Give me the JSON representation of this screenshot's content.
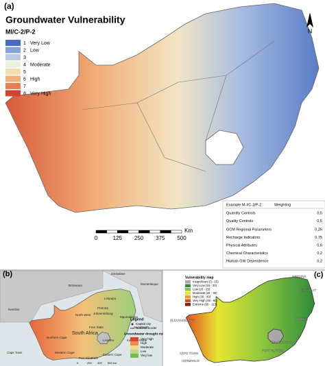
{
  "panel_a": {
    "label": "(a)",
    "title": "Groundwater Vulnerability",
    "subtitle": "MI/C-2/P-2",
    "north": "N",
    "legend": [
      {
        "number": "1",
        "label": "Very Low",
        "color": "#4a6cc0"
      },
      {
        "number": "2",
        "label": "Low",
        "color": "#86a2d8"
      },
      {
        "number": "3",
        "color": "#bccbe2"
      },
      {
        "number": "4",
        "label": "Moderate",
        "color": "#ecefdc"
      },
      {
        "number": "5",
        "color": "#f6dfae"
      },
      {
        "number": "6",
        "label": "High",
        "color": "#f2b07a"
      },
      {
        "number": "7",
        "color": "#e8814f"
      },
      {
        "number": "8",
        "label": "Very High",
        "color": "#d04634"
      }
    ],
    "scale": {
      "unit": "Km",
      "ticks": [
        "0",
        "125",
        "250",
        "375",
        "500"
      ]
    },
    "table": {
      "header": [
        "Example M-I/C-2/P-2",
        "Weighting"
      ],
      "rows": [
        [
          "Quantity Controls",
          "0,5"
        ],
        [
          "Quality Controls",
          "0,5"
        ],
        [
          "GCM Regional Parameters",
          "0,25"
        ],
        [
          "Recharge Indicators",
          "0,75"
        ],
        [
          "Physical Attributes",
          "0,6"
        ],
        [
          "Chemical Characteristics",
          "0,2"
        ],
        [
          "Human GW Dependence",
          "0,2"
        ]
      ]
    }
  },
  "panel_b": {
    "label": "(b)",
    "places": [
      "Namibia",
      "Botswana",
      "Zimbabwe",
      "Mozambique",
      "Limpopo",
      "Pretoria",
      "Johannesburg",
      "North West",
      "Mpumalanga",
      "Swaziland",
      "South Africa",
      "Free State",
      "Kwazulu Natal",
      "Lesotho",
      "Northern Cape",
      "Eastern Cape",
      "Western Cape",
      "Cape Town",
      "Port Elizabeth"
    ],
    "legend_title": "Legend",
    "capital": "Capital city",
    "border": "National border",
    "risk_title": "Groundwater drought risk",
    "risk_levels": [
      "Very high",
      "High",
      "Moderate",
      "Low",
      "Very low"
    ],
    "scale": [
      "0",
      "200",
      "400",
      "600 km"
    ]
  },
  "panel_c": {
    "label": "(c)",
    "legend_title": "Vulnerability map",
    "classes": [
      {
        "label": "Insignificant (3 - 15)",
        "color": "#a8a8a8"
      },
      {
        "label": "Very Low (15 - 20)",
        "color": "#2e8b3a"
      },
      {
        "label": "Low (20 - 25)",
        "color": "#8cc63e"
      },
      {
        "label": "Moderate (25 - 30)",
        "color": "#e6e632"
      },
      {
        "label": "High (30 - 40)",
        "color": "#f0a030"
      },
      {
        "label": "Very High (40 - 60)",
        "color": "#e0501e"
      },
      {
        "label": "Extreme (60 - 113)",
        "color": "#8b1a10"
      }
    ],
    "places": [
      "MESSINA",
      "NELSPRUIT",
      "DURBAN",
      "EAST LONDON",
      "PORT ALFRED",
      "ALEXANDER BAY",
      "CAPE TOWN",
      "HERMANUS"
    ]
  }
}
